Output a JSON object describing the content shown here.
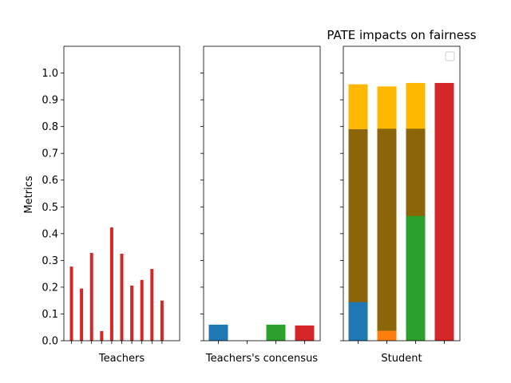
{
  "chart_data": [
    {
      "type": "bar",
      "xlabel": "Teachers",
      "ylabel": "Metrics",
      "ylim": [
        0,
        1.1
      ],
      "yticks": [
        "0.0",
        "0.1",
        "0.2",
        "0.3",
        "0.4",
        "0.5",
        "0.6",
        "0.7",
        "0.8",
        "0.9",
        "1.0"
      ],
      "x_tick_labels": "none",
      "values": [
        0.277,
        0.195,
        0.328,
        0.036,
        0.423,
        0.325,
        0.206,
        0.227,
        0.268,
        0.15
      ],
      "color": "#d62728"
    },
    {
      "type": "bar",
      "xlabel": "Teachers's concensus",
      "ylim": [
        0,
        1.1
      ],
      "y_tick_labels": "none",
      "x_tick_labels": "none",
      "values": [
        0.06,
        0.0,
        0.06,
        0.057
      ],
      "colors": [
        "#1f77b4",
        "#ff7f0e",
        "#2ca02c",
        "#d62728"
      ]
    },
    {
      "type": "bar",
      "stacked": "overlaid",
      "title": "PATE impacts on fairness",
      "xlabel": "Student",
      "ylim": [
        0,
        1.1
      ],
      "y_tick_labels": "none",
      "x_tick_labels": "none",
      "legend": "top-right (empty)",
      "bars": [
        {
          "segments": [
            {
              "value": 0.958,
              "color": "#ffb800"
            },
            {
              "value": 0.79,
              "color": "#8b6508"
            },
            {
              "value": 0.144,
              "color": "#1f77b4"
            }
          ]
        },
        {
          "segments": [
            {
              "value": 0.95,
              "color": "#ffb800"
            },
            {
              "value": 0.792,
              "color": "#8b6508"
            },
            {
              "value": 0.037,
              "color": "#ff7f0e"
            }
          ]
        },
        {
          "segments": [
            {
              "value": 0.963,
              "color": "#ffb800"
            },
            {
              "value": 0.792,
              "color": "#8b6508"
            },
            {
              "value": 0.466,
              "color": "#2ca02c"
            }
          ]
        },
        {
          "segments": [
            {
              "value": 0.963,
              "color": "#d62728"
            }
          ]
        }
      ]
    }
  ]
}
